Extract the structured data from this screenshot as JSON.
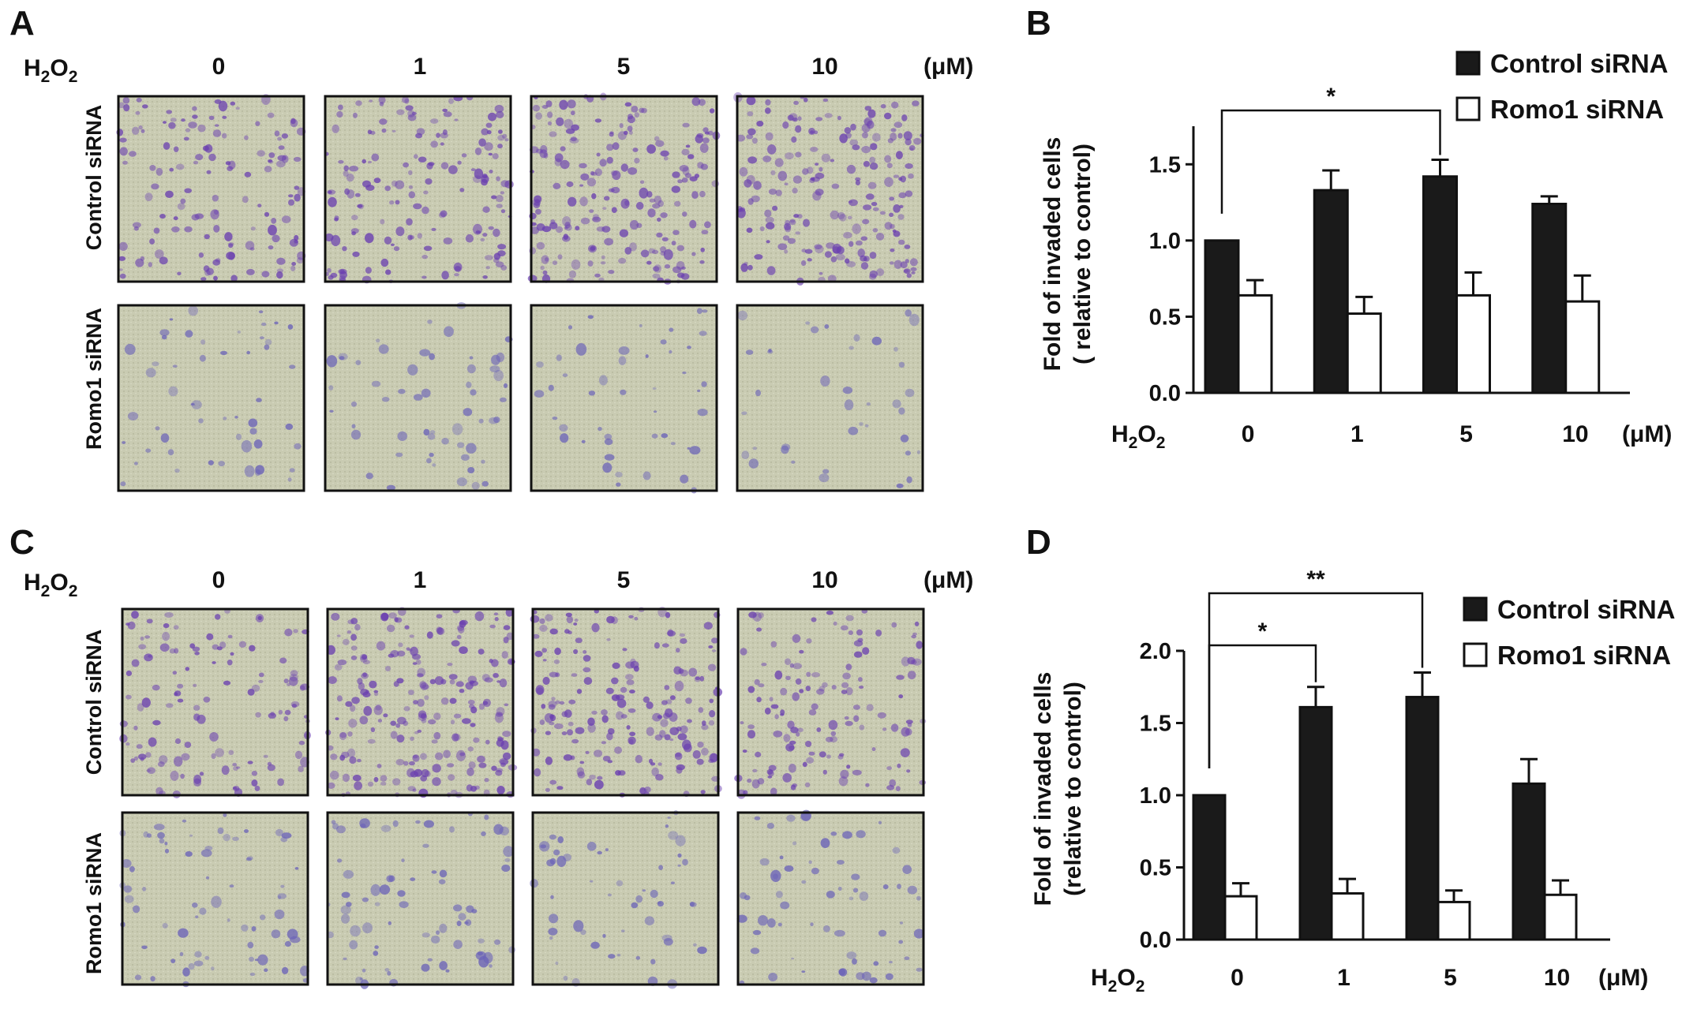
{
  "compound_main": "H",
  "compound_sub": "2",
  "compound_main2": "O",
  "unit": "(μM)",
  "concentrations": [
    "0",
    "1",
    "5",
    "10"
  ],
  "panels": {
    "A": {
      "label": "A",
      "rows": [
        "Control siRNA",
        "Romo1 siRNA"
      ],
      "stain_density": {
        "control": [
          0.55,
          0.65,
          0.8,
          0.8
        ],
        "romo1": [
          0.2,
          0.22,
          0.18,
          0.15
        ]
      }
    },
    "C": {
      "label": "C",
      "rows": [
        "Control siRNA",
        "Romo1 siRNA"
      ],
      "stain_density": {
        "control": [
          0.5,
          0.9,
          0.75,
          0.55
        ],
        "romo1": [
          0.28,
          0.3,
          0.22,
          0.25
        ]
      }
    }
  },
  "colors": {
    "control_bar": "#1a1a1a",
    "romo1_bar": "#ffffff",
    "control_stain": "#6a3fb0",
    "romo1_stain": "#6b63b8",
    "background_field": "#c9cbb2"
  },
  "chart_data": [
    {
      "panel": "B",
      "type": "bar",
      "label": "B",
      "xlabel": "(μM)",
      "ylabel_line1": "Fold of invaded cells",
      "ylabel_line2": "( relative to control)",
      "categories": [
        "0",
        "1",
        "5",
        "10"
      ],
      "ylim": [
        0,
        1.75
      ],
      "yticks": [
        "0.0",
        "0.5",
        "1.0",
        "1.5"
      ],
      "series": [
        {
          "name": "Control siRNA",
          "values": [
            1.0,
            1.33,
            1.42,
            1.24
          ],
          "errors": [
            0,
            0.13,
            0.11,
            0.05
          ]
        },
        {
          "name": "Romo1 siRNA",
          "values": [
            0.64,
            0.52,
            0.64,
            0.6
          ],
          "errors": [
            0.1,
            0.11,
            0.15,
            0.17
          ]
        }
      ],
      "significance": [
        {
          "from": "0",
          "to": "5",
          "mark": "*"
        }
      ],
      "legend": "top-right"
    },
    {
      "panel": "D",
      "type": "bar",
      "label": "D",
      "xlabel": "(μM)",
      "ylabel_line1": "Fold of invaded cells",
      "ylabel_line2": "(relative to control)",
      "categories": [
        "0",
        "1",
        "5",
        "10"
      ],
      "ylim": [
        0,
        2.0
      ],
      "yticks": [
        "0.0",
        "0.5",
        "1.0",
        "1.5",
        "2.0"
      ],
      "series": [
        {
          "name": "Control siRNA",
          "values": [
            1.0,
            1.61,
            1.68,
            1.08
          ],
          "errors": [
            0,
            0.14,
            0.17,
            0.17
          ]
        },
        {
          "name": "Romo1 siRNA",
          "values": [
            0.3,
            0.32,
            0.26,
            0.31
          ],
          "errors": [
            0.09,
            0.1,
            0.08,
            0.1
          ]
        }
      ],
      "significance": [
        {
          "from": "0",
          "to": "1",
          "mark": "*"
        },
        {
          "from": "0",
          "to": "5",
          "mark": "**"
        }
      ],
      "legend": "top-right"
    }
  ]
}
